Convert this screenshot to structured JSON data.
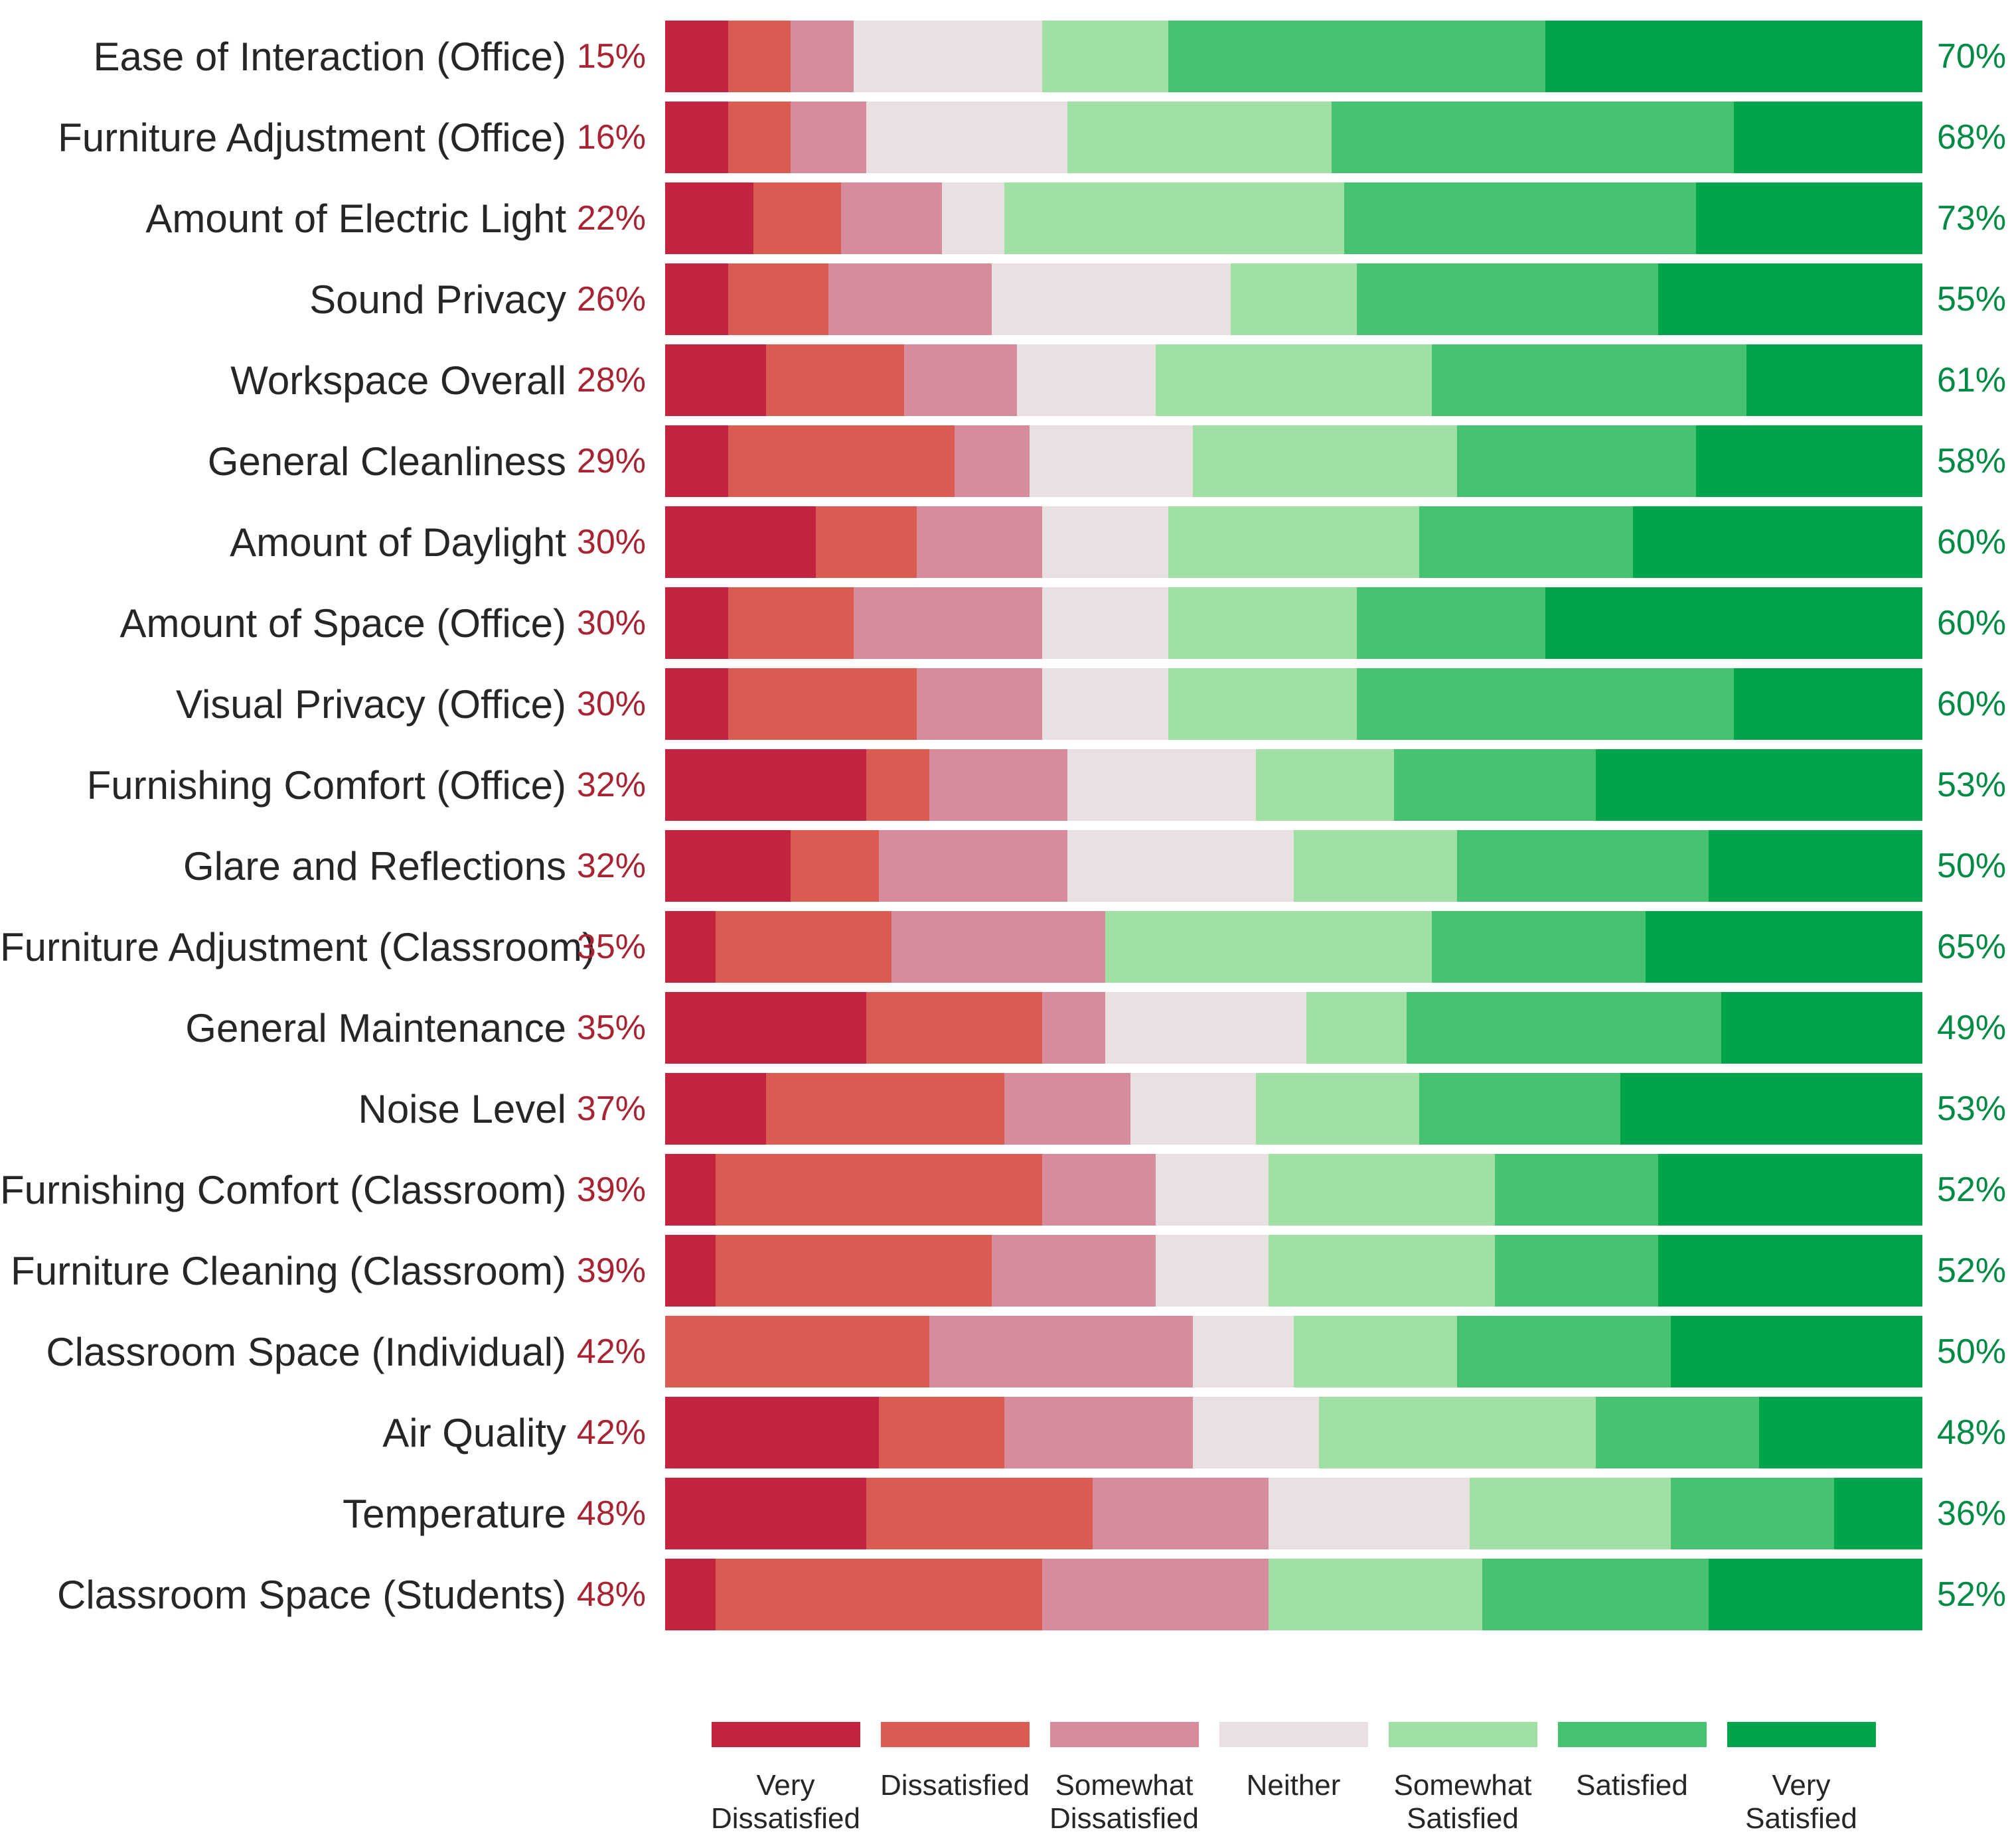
{
  "chart_data": {
    "type": "bar",
    "subtype": "diverging-stacked-likert",
    "title": "",
    "xlabel": "",
    "ylabel": "",
    "grid": false,
    "legend_position": "bottom",
    "axis_range_pct": [
      0,
      100
    ],
    "categories": [
      "Ease of Interaction (Office)",
      "Furniture Adjustment (Office)",
      "Amount of Electric Light",
      "Sound Privacy",
      "Workspace Overall",
      "General Cleanliness",
      "Amount of Daylight",
      "Amount of Space (Office)",
      "Visual Privacy (Office)",
      "Furnishing Comfort (Office)",
      "Glare and Reflections",
      "Furniture Adjustment (Classroom)",
      "General Maintenance",
      "Noise Level",
      "Furnishing Comfort (Classroom)",
      "Furniture Cleaning (Classroom)",
      "Classroom Space (Individual)",
      "Air Quality",
      "Temperature",
      "Classroom Space (Students)"
    ],
    "left_totals": [
      "15%",
      "16%",
      "22%",
      "26%",
      "28%",
      "29%",
      "30%",
      "30%",
      "30%",
      "32%",
      "32%",
      "35%",
      "35%",
      "37%",
      "39%",
      "39%",
      "42%",
      "42%",
      "48%",
      "48%"
    ],
    "right_totals": [
      "70%",
      "68%",
      "73%",
      "55%",
      "61%",
      "58%",
      "60%",
      "60%",
      "60%",
      "53%",
      "50%",
      "65%",
      "49%",
      "53%",
      "52%",
      "52%",
      "50%",
      "48%",
      "36%",
      "52%"
    ],
    "series": [
      {
        "name": "Very Dissatisfied",
        "key": "very-dissatisfied",
        "color": "#C2243F",
        "values": [
          5,
          5,
          7,
          5,
          8,
          5,
          12,
          5,
          5,
          16,
          10,
          4,
          16,
          8,
          4,
          4,
          0,
          17,
          16,
          4
        ]
      },
      {
        "name": "Dissatisfied",
        "key": "dissatisfied",
        "color": "#D95B52",
        "values": [
          5,
          5,
          7,
          8,
          11,
          18,
          8,
          10,
          15,
          5,
          7,
          14,
          14,
          19,
          26,
          22,
          21,
          10,
          18,
          26
        ]
      },
      {
        "name": "Somewhat Dissatisfied",
        "key": "somewhat-dissatisfied",
        "color": "#D78C9C",
        "values": [
          5,
          6,
          8,
          13,
          9,
          6,
          10,
          15,
          10,
          11,
          15,
          17,
          5,
          10,
          9,
          13,
          21,
          15,
          14,
          18
        ]
      },
      {
        "name": "Neither",
        "key": "neither",
        "color": "#E9E0E2",
        "values": [
          15,
          16,
          5,
          19,
          11,
          13,
          10,
          10,
          10,
          15,
          18,
          0,
          16,
          10,
          9,
          9,
          8,
          10,
          16,
          0
        ]
      },
      {
        "name": "Somewhat Satisfied",
        "key": "somewhat-satisfied",
        "color": "#A1E0A4",
        "values": [
          10,
          21,
          27,
          10,
          22,
          21,
          20,
          15,
          15,
          11,
          13,
          26,
          8,
          13,
          18,
          18,
          13,
          22,
          16,
          17
        ]
      },
      {
        "name": "Satisfied",
        "key": "satisfied",
        "color": "#47C271",
        "values": [
          30,
          32,
          28,
          24,
          25,
          19,
          17,
          15,
          30,
          16,
          20,
          17,
          25,
          16,
          13,
          13,
          17,
          13,
          13,
          18
        ]
      },
      {
        "name": "Very Satisfied",
        "key": "very-satisfied",
        "color": "#00A449",
        "values": [
          30,
          15,
          18,
          21,
          14,
          18,
          23,
          30,
          15,
          26,
          17,
          22,
          16,
          24,
          21,
          21,
          20,
          13,
          7,
          17
        ]
      }
    ],
    "legend": [
      {
        "key": "very-dissatisfied",
        "color": "#C2243F",
        "lines": [
          "Very",
          "Dissatisfied"
        ]
      },
      {
        "key": "dissatisfied",
        "color": "#D95B52",
        "lines": [
          "Dissatisfied"
        ]
      },
      {
        "key": "somewhat-dissatisfied",
        "color": "#D78C9C",
        "lines": [
          "Somewhat",
          "Dissatisfied"
        ]
      },
      {
        "key": "neither",
        "color": "#E9E0E2",
        "lines": [
          "Neither"
        ]
      },
      {
        "key": "somewhat-satisfied",
        "color": "#A1E0A4",
        "lines": [
          "Somewhat",
          "Satisfied"
        ]
      },
      {
        "key": "satisfied",
        "color": "#47C271",
        "lines": [
          "Satisfied"
        ]
      },
      {
        "key": "very-satisfied",
        "color": "#00A449",
        "lines": [
          "Very",
          "Satisfied"
        ]
      }
    ],
    "text_colors": {
      "category_label": "#262626",
      "left_total": "#A92433",
      "right_total": "#008B45"
    }
  }
}
